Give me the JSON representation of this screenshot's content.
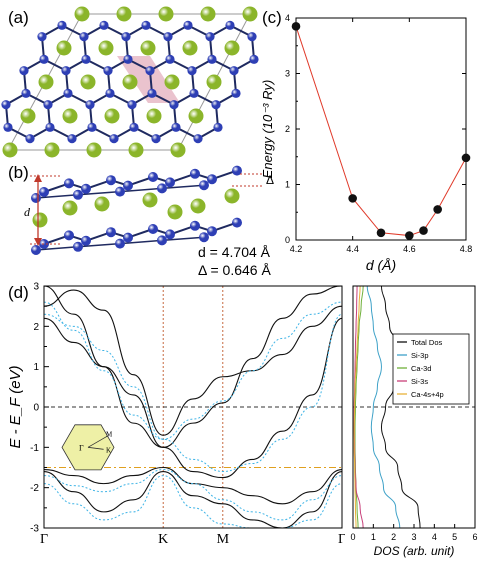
{
  "panels": {
    "a": {
      "label": "(a)"
    },
    "b": {
      "label": "(b)",
      "d_symbol": "d",
      "delta_symbol": "Δ",
      "d_value_text": "d = 4.704 Å",
      "delta_value_text": "Δ = 0.646 Å"
    },
    "c": {
      "label": "(c)"
    },
    "d": {
      "label": "(d)"
    }
  },
  "colors": {
    "atom_ca": "#8bb52a",
    "atom_si": "#2e3fb5",
    "bond": "#1f2a60",
    "cell": "#9a9a9a",
    "highlight": "#e6b9c6",
    "band_black": "#111111",
    "band_cyan": "#3fb4e6",
    "line_red": "#e03a2a",
    "bz_fill": "#eef0a6",
    "fermi": "#333333",
    "dos_total": "#111111",
    "dos_si3p": "#3fa2c8",
    "dos_ca3d": "#6fb03a",
    "dos_si3s": "#c8407a",
    "dos_ca4s4p": "#e8b23a"
  },
  "icons": {
    "ca_atom": "green-sphere",
    "si_atom": "blue-sphere"
  },
  "chart_data": [
    {
      "type": "scatter",
      "panel": "c",
      "xlabel": "d (Å)",
      "ylabel": "Energy (10⁻³ Ry)",
      "xlim": [
        4.2,
        4.8
      ],
      "ylim": [
        0,
        4
      ],
      "x_ticks": [
        "4.2",
        "4.4",
        "4.6",
        "4.8"
      ],
      "y_ticks": [
        "0",
        "1",
        "2",
        "3",
        "4"
      ],
      "x": [
        4.2,
        4.4,
        4.5,
        4.6,
        4.65,
        4.7,
        4.8
      ],
      "y": [
        3.85,
        0.75,
        0.13,
        0.08,
        0.17,
        0.55,
        1.48
      ],
      "line_color": "#e03a2a",
      "marker": "filled-circle"
    },
    {
      "type": "line",
      "panel": "d-bands",
      "ylabel": "E - E_F (eV)",
      "ylim": [
        -3,
        3
      ],
      "y_ticks": [
        "-3",
        "-2",
        "-1",
        "0",
        "1",
        "2",
        "3"
      ],
      "k_labels": [
        "Γ",
        "K",
        "M",
        "Γ"
      ],
      "k_positions": [
        0,
        1,
        1.5,
        2.5
      ],
      "fermi_level": 0,
      "bz_inset": {
        "gamma": "Γ",
        "k": "K",
        "m": "M"
      },
      "series": [
        {
          "style": "solid-black",
          "x": [
            0,
            0.25,
            0.5,
            0.75,
            1,
            1.25,
            1.5,
            1.75,
            2,
            2.25,
            2.5
          ],
          "y": [
            3.0,
            2.3,
            1.0,
            -0.4,
            -1.0,
            -0.4,
            0.1,
            1.2,
            2.2,
            2.8,
            3.0
          ]
        },
        {
          "style": "solid-black",
          "x": [
            0,
            0.25,
            0.5,
            0.75,
            1,
            1.25,
            1.5,
            1.75,
            2,
            2.25,
            2.5
          ],
          "y": [
            2.5,
            2.9,
            2.4,
            0.8,
            -0.7,
            0.2,
            0.75,
            0.9,
            1.3,
            2.0,
            2.5
          ]
        },
        {
          "style": "solid-black",
          "x": [
            0,
            0.25,
            0.5,
            0.75,
            1,
            1.25,
            1.5,
            1.75,
            2,
            2.25,
            2.5
          ],
          "y": [
            2.2,
            1.6,
            1.0,
            0.3,
            -1.0,
            -1.6,
            -1.75,
            -1.3,
            -0.6,
            0.3,
            2.2
          ]
        },
        {
          "style": "solid-black",
          "x": [
            0,
            0.25,
            0.5,
            0.75,
            1,
            1.25,
            1.5,
            1.75,
            2,
            2.25,
            2.5
          ],
          "y": [
            -1.55,
            -1.7,
            -1.9,
            -1.7,
            -1.5,
            -1.9,
            -2.0,
            -2.2,
            -2.4,
            -2.1,
            -1.55
          ]
        },
        {
          "style": "solid-black",
          "x": [
            0,
            0.25,
            0.5,
            0.75,
            1,
            1.25,
            1.5,
            1.75,
            2,
            2.25,
            2.5
          ],
          "y": [
            -1.6,
            -2.1,
            -2.6,
            -2.3,
            -1.6,
            -2.2,
            -2.4,
            -2.8,
            -3.0,
            -2.6,
            -1.6
          ]
        },
        {
          "style": "dashed-cyan",
          "x": [
            0,
            0.25,
            0.5,
            0.75,
            1,
            1.25,
            1.5,
            1.75,
            2,
            2.25,
            2.5
          ],
          "y": [
            2.6,
            1.9,
            0.9,
            -0.2,
            -0.8,
            -0.3,
            0.15,
            0.9,
            1.7,
            2.3,
            2.6
          ]
        },
        {
          "style": "dashed-cyan",
          "x": [
            0,
            0.25,
            0.5,
            0.75,
            1,
            1.25,
            1.5,
            1.75,
            2,
            2.25,
            2.5
          ],
          "y": [
            2.3,
            2.0,
            1.4,
            0.5,
            -0.8,
            -1.3,
            -1.6,
            -1.4,
            -0.8,
            0.0,
            2.3
          ]
        },
        {
          "style": "dashed-cyan",
          "x": [
            0,
            0.25,
            0.5,
            0.75,
            1,
            1.25,
            1.5,
            1.75,
            2,
            2.25,
            2.5
          ],
          "y": [
            -1.7,
            -1.95,
            -2.1,
            -1.9,
            -1.55,
            -1.9,
            -2.3,
            -2.6,
            -2.8,
            -2.3,
            -1.7
          ]
        },
        {
          "style": "dashed-cyan",
          "x": [
            0,
            0.25,
            0.5,
            0.75,
            1,
            1.25,
            1.5,
            1.75,
            2,
            2.25,
            2.5
          ],
          "y": [
            -1.9,
            -2.4,
            -2.8,
            -2.6,
            -1.7,
            -2.5,
            -2.9,
            -3.0,
            -3.0,
            -2.8,
            -1.9
          ]
        }
      ]
    },
    {
      "type": "line",
      "panel": "d-dos",
      "xlabel": "DOS (arb. unit)",
      "xlim": [
        0,
        6
      ],
      "x_ticks": [
        "0",
        "1",
        "2",
        "3",
        "4",
        "5",
        "6"
      ],
      "ylim": [
        -3,
        3
      ],
      "legend_position": "right-middle",
      "series": [
        {
          "name": "Total Dos",
          "color": "#111111",
          "energy": [
            3,
            2.5,
            2,
            1.5,
            1,
            0.5,
            0,
            -0.5,
            -1,
            -1.5,
            -2,
            -2.5,
            -3
          ],
          "dos": [
            1.4,
            1.6,
            1.8,
            2.3,
            2.6,
            2.0,
            1.6,
            1.4,
            1.6,
            2.2,
            2.4,
            3.2,
            3.3
          ]
        },
        {
          "name": "Si-3p",
          "color": "#3fa2c8",
          "energy": [
            3,
            2.5,
            2,
            1.5,
            1,
            0.5,
            0,
            -0.5,
            -1,
            -1.5,
            -2,
            -2.5,
            -3
          ],
          "dos": [
            0.7,
            0.9,
            1.0,
            1.2,
            1.4,
            1.2,
            1.0,
            0.9,
            1.0,
            1.3,
            1.5,
            2.1,
            2.3
          ]
        },
        {
          "name": "Ca-3d",
          "color": "#6fb03a",
          "energy": [
            3,
            2.5,
            2,
            1.5,
            1,
            0.5,
            0,
            -0.5,
            -1,
            -1.5,
            -2,
            -2.5,
            -3
          ],
          "dos": [
            0.5,
            0.4,
            0.3,
            0.25,
            0.2,
            0.15,
            0.12,
            0.1,
            0.1,
            0.12,
            0.15,
            0.2,
            0.25
          ]
        },
        {
          "name": "Si-3s",
          "color": "#c8407a",
          "energy": [
            3,
            2.5,
            2,
            1.5,
            1,
            0.5,
            0,
            -0.5,
            -1,
            -1.5,
            -2,
            -2.5,
            -3
          ],
          "dos": [
            0.2,
            0.18,
            0.15,
            0.12,
            0.1,
            0.08,
            0.06,
            0.06,
            0.08,
            0.1,
            0.15,
            0.35,
            0.5
          ]
        },
        {
          "name": "Ca-4s+4p",
          "color": "#e8b23a",
          "energy": [
            3,
            2.5,
            2,
            1.5,
            1,
            0.5,
            0,
            -0.5,
            -1,
            -1.5,
            -2,
            -2.5,
            -3
          ],
          "dos": [
            0.35,
            0.3,
            0.25,
            0.2,
            0.15,
            0.1,
            0.08,
            0.06,
            0.06,
            0.08,
            0.1,
            0.12,
            0.15
          ]
        }
      ]
    }
  ]
}
